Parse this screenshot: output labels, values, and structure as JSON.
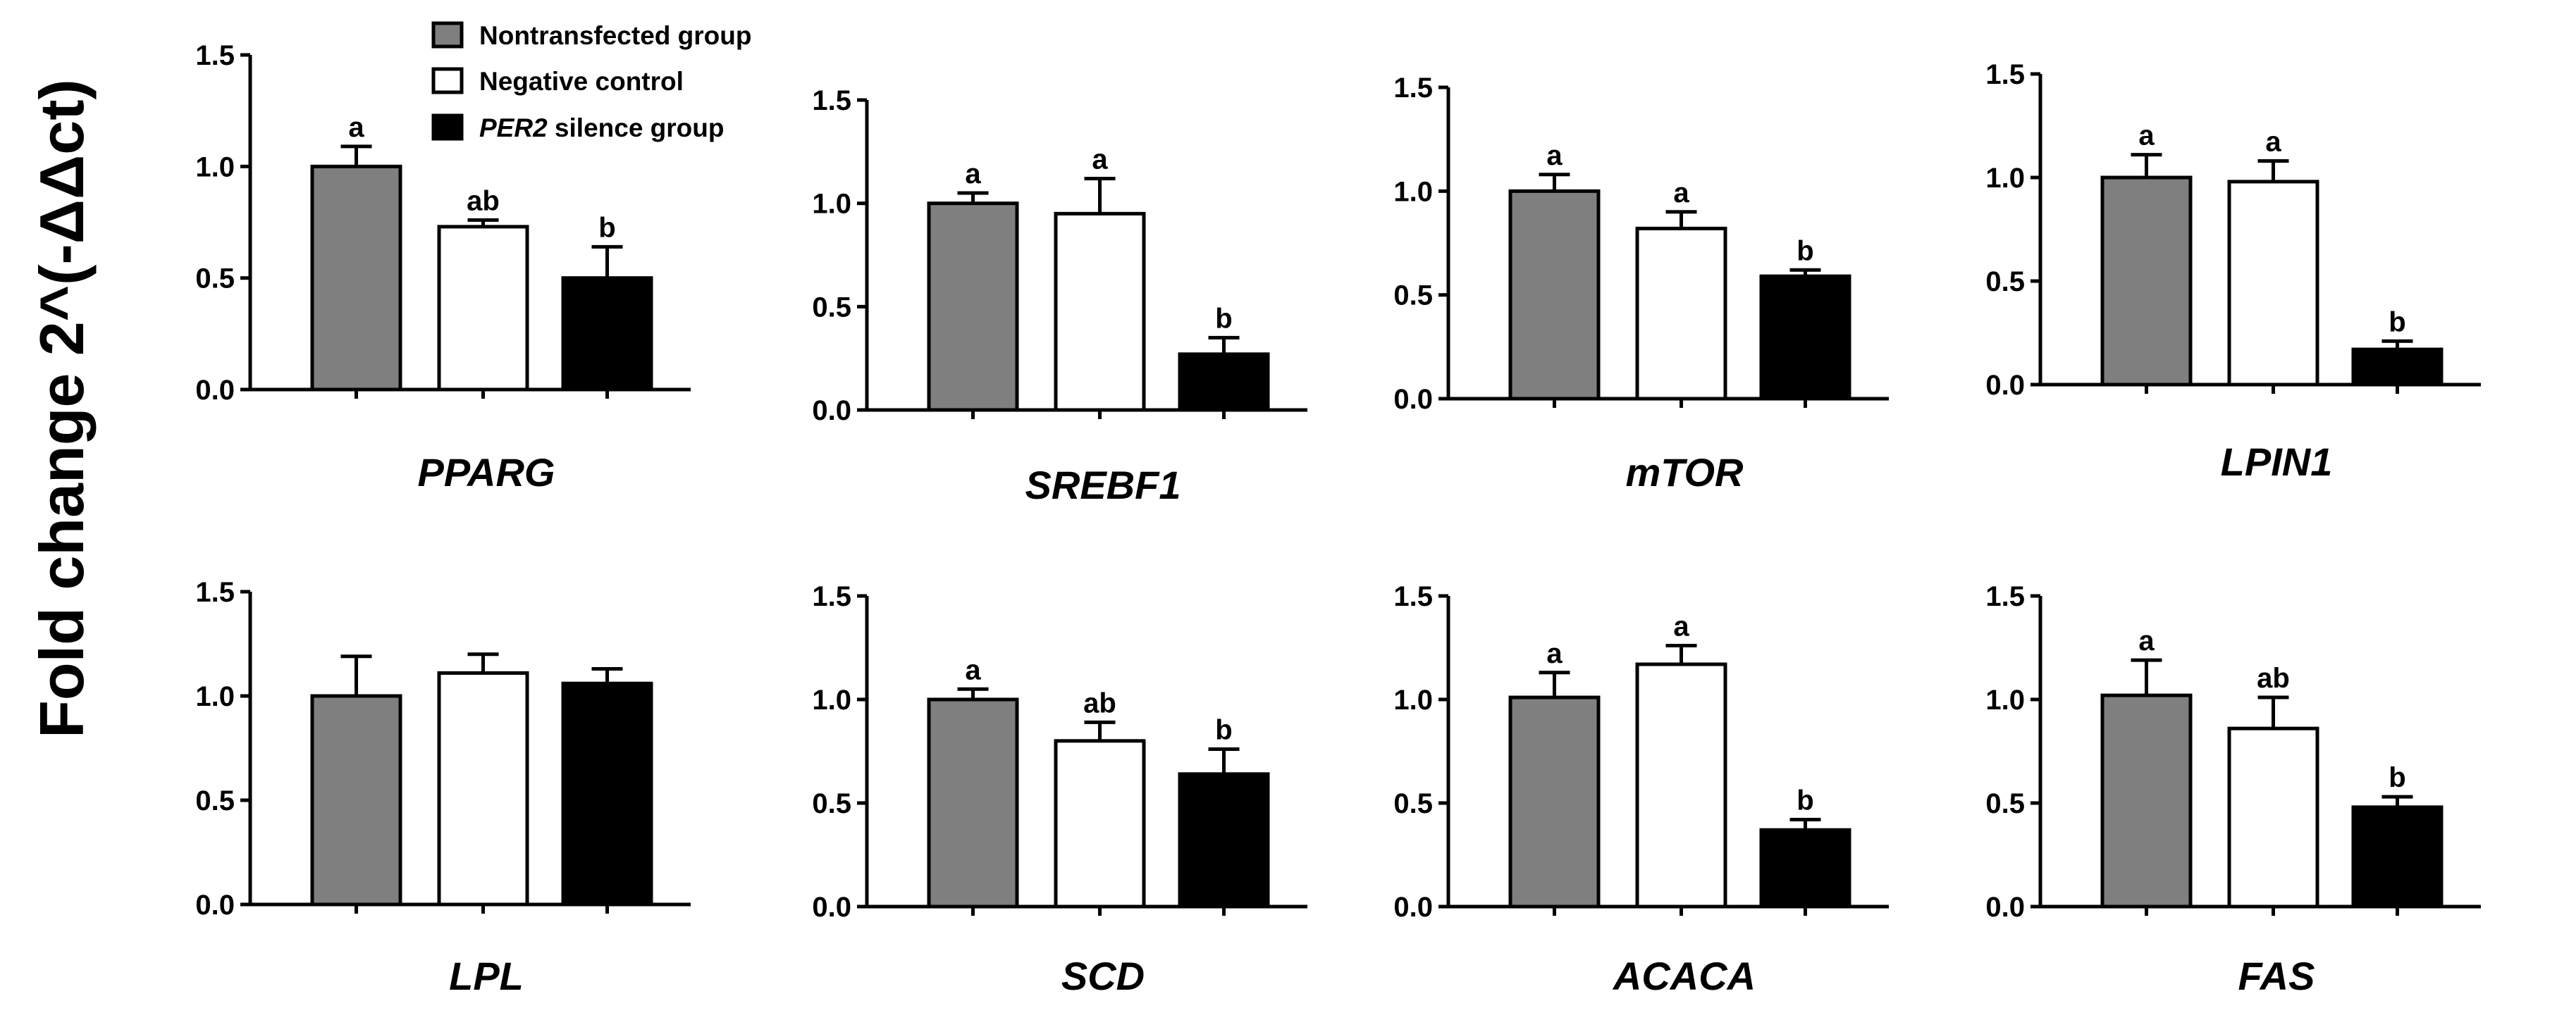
{
  "figure": {
    "ylabel": "Fold change  2^(-ΔΔct)",
    "legend": [
      {
        "name": "Nontransfected group",
        "color": "#7f7f7f"
      },
      {
        "name": "Negative control",
        "color": "#ffffff"
      },
      {
        "name_italic": "PER2",
        "name_rest": " silence group",
        "color": "#000000"
      }
    ]
  },
  "chart_data": [
    {
      "type": "bar",
      "title": "PPARG",
      "ylim": [
        0,
        1.5
      ],
      "yticks": [
        "0.0",
        "0.5",
        "1.0",
        "1.5"
      ],
      "categories": [
        "Nontransfected group",
        "Negative control",
        "PER2 silence group"
      ],
      "values": [
        1.0,
        0.73,
        0.5
      ],
      "errors": [
        0.09,
        0.03,
        0.14
      ],
      "letters": [
        "a",
        "ab",
        "b"
      ]
    },
    {
      "type": "bar",
      "title": "SREBF1",
      "ylim": [
        0,
        1.5
      ],
      "yticks": [
        "0.0",
        "0.5",
        "1.0",
        "1.5"
      ],
      "categories": [
        "Nontransfected group",
        "Negative control",
        "PER2 silence group"
      ],
      "values": [
        1.0,
        0.95,
        0.27
      ],
      "errors": [
        0.05,
        0.17,
        0.08
      ],
      "letters": [
        "a",
        "a",
        "b"
      ]
    },
    {
      "type": "bar",
      "title": "mTOR",
      "ylim": [
        0,
        1.5
      ],
      "yticks": [
        "0.0",
        "0.5",
        "1.0",
        "1.5"
      ],
      "categories": [
        "Nontransfected group",
        "Negative control",
        "PER2 silence group"
      ],
      "values": [
        1.0,
        0.82,
        0.59
      ],
      "errors": [
        0.08,
        0.08,
        0.03
      ],
      "letters": [
        "a",
        "a",
        "b"
      ]
    },
    {
      "type": "bar",
      "title": "LPIN1",
      "ylim": [
        0,
        1.5
      ],
      "yticks": [
        "0.0",
        "0.5",
        "1.0",
        "1.5"
      ],
      "categories": [
        "Nontransfected group",
        "Negative control",
        "PER2 silence group"
      ],
      "values": [
        1.0,
        0.98,
        0.17
      ],
      "errors": [
        0.11,
        0.1,
        0.04
      ],
      "letters": [
        "a",
        "a",
        "b"
      ]
    },
    {
      "type": "bar",
      "title": "LPL",
      "ylim": [
        0,
        1.5
      ],
      "yticks": [
        "0.0",
        "0.5",
        "1.0",
        "1.5"
      ],
      "categories": [
        "Nontransfected group",
        "Negative control",
        "PER2 silence group"
      ],
      "values": [
        1.0,
        1.11,
        1.06
      ],
      "errors": [
        0.19,
        0.09,
        0.07
      ],
      "letters": [
        "",
        "",
        ""
      ]
    },
    {
      "type": "bar",
      "title": "SCD",
      "ylim": [
        0,
        1.5
      ],
      "yticks": [
        "0.0",
        "0.5",
        "1.0",
        "1.5"
      ],
      "categories": [
        "Nontransfected group",
        "Negative control",
        "PER2 silence group"
      ],
      "values": [
        1.0,
        0.8,
        0.64
      ],
      "errors": [
        0.05,
        0.09,
        0.12
      ],
      "letters": [
        "a",
        "ab",
        "b"
      ]
    },
    {
      "type": "bar",
      "title": "ACACA",
      "ylim": [
        0,
        1.5
      ],
      "yticks": [
        "0.0",
        "0.5",
        "1.0",
        "1.5"
      ],
      "categories": [
        "Nontransfected group",
        "Negative control",
        "PER2 silence group"
      ],
      "values": [
        1.01,
        1.17,
        0.37
      ],
      "errors": [
        0.12,
        0.09,
        0.05
      ],
      "letters": [
        "a",
        "a",
        "b"
      ]
    },
    {
      "type": "bar",
      "title": "FAS",
      "ylim": [
        0,
        1.5
      ],
      "yticks": [
        "0.0",
        "0.5",
        "1.0",
        "1.5"
      ],
      "categories": [
        "Nontransfected group",
        "Negative control",
        "PER2 silence group"
      ],
      "values": [
        1.02,
        0.86,
        0.48
      ],
      "errors": [
        0.17,
        0.15,
        0.05
      ],
      "letters": [
        "a",
        "ab",
        "b"
      ]
    }
  ]
}
